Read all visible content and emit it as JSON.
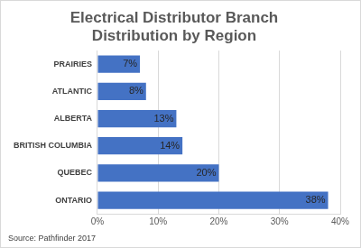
{
  "chart_data": {
    "type": "bar",
    "orientation": "horizontal",
    "title": "Electrical Distributor Branch Distribution by Region",
    "annotation": "Source: Pathfinder 2017",
    "categories": [
      "PRAIRIES",
      "ATLANTIC",
      "ALBERTA",
      "BRITISH COLUMBIA",
      "QUEBEC",
      "ONTARIO"
    ],
    "values": [
      7,
      8,
      13,
      14,
      20,
      38
    ],
    "value_labels": [
      "7%",
      "8%",
      "13%",
      "14%",
      "20%",
      "38%"
    ],
    "data_labels": true,
    "color": "#4472c4",
    "xlim": [
      0,
      40
    ],
    "xticks": [
      {
        "value": 0,
        "label": "0%"
      },
      {
        "value": 10,
        "label": "10%"
      },
      {
        "value": 20,
        "label": "20%"
      },
      {
        "value": 30,
        "label": "30%"
      },
      {
        "value": 40,
        "label": "40%"
      }
    ],
    "grid": true
  }
}
